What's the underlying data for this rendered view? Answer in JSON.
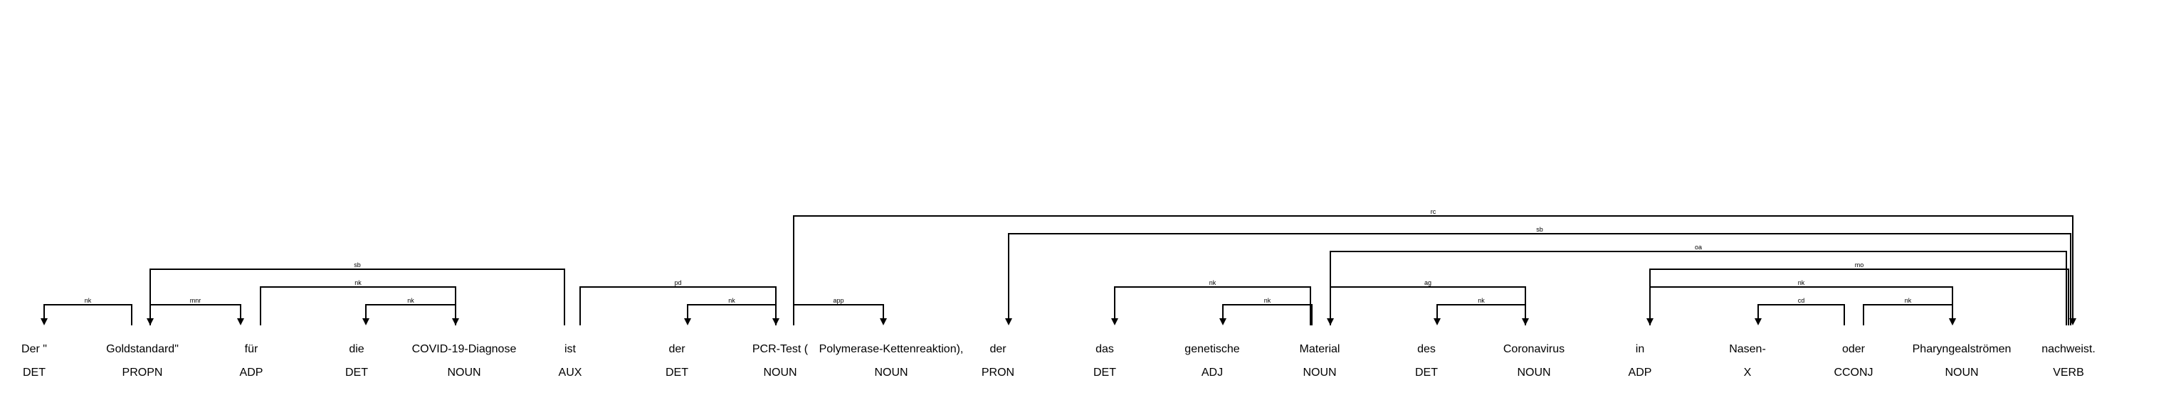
{
  "tokens": [
    {
      "text": "Der \"",
      "tag": "DET"
    },
    {
      "text": "Goldstandard\"",
      "tag": "PROPN"
    },
    {
      "text": "für",
      "tag": "ADP"
    },
    {
      "text": "die",
      "tag": "DET"
    },
    {
      "text": "COVID-19-Diagnose",
      "tag": "NOUN"
    },
    {
      "text": "ist",
      "tag": "AUX"
    },
    {
      "text": "der",
      "tag": "DET"
    },
    {
      "text": "PCR-Test (",
      "tag": "NOUN"
    },
    {
      "text": "Polymerase-Kettenreaktion),",
      "tag": "NOUN"
    },
    {
      "text": "der",
      "tag": "PRON"
    },
    {
      "text": "das",
      "tag": "DET"
    },
    {
      "text": "genetische",
      "tag": "ADJ"
    },
    {
      "text": "Material",
      "tag": "NOUN"
    },
    {
      "text": "des",
      "tag": "DET"
    },
    {
      "text": "Coronavirus",
      "tag": "NOUN"
    },
    {
      "text": "in",
      "tag": "ADP"
    },
    {
      "text": "Nasen-",
      "tag": "X"
    },
    {
      "text": "oder",
      "tag": "CCONJ"
    },
    {
      "text": "Pharyngealströmen",
      "tag": "NOUN"
    },
    {
      "text": "nachweist.",
      "tag": "VERB"
    }
  ],
  "arcs": [
    {
      "head": 1,
      "dep": 0,
      "label": "nk"
    },
    {
      "head": 1,
      "dep": 2,
      "label": "mnr"
    },
    {
      "head": 4,
      "dep": 3,
      "label": "nk"
    },
    {
      "head": 2,
      "dep": 4,
      "label": "nk"
    },
    {
      "head": 5,
      "dep": 1,
      "label": "sb"
    },
    {
      "head": 7,
      "dep": 6,
      "label": "nk"
    },
    {
      "head": 5,
      "dep": 7,
      "label": "pd"
    },
    {
      "head": 7,
      "dep": 8,
      "label": "app"
    },
    {
      "head": 12,
      "dep": 10,
      "label": "nk"
    },
    {
      "head": 12,
      "dep": 11,
      "label": "nk"
    },
    {
      "head": 14,
      "dep": 13,
      "label": "nk"
    },
    {
      "head": 12,
      "dep": 14,
      "label": "ag"
    },
    {
      "head": 16,
      "dep": 17,
      "label": "cd"
    },
    {
      "head": 18,
      "dep": 17,
      "label": "nk"
    },
    {
      "head": 15,
      "dep": 18,
      "label": "nk"
    },
    {
      "head": 19,
      "dep": 15,
      "label": "mo"
    },
    {
      "head": 19,
      "dep": 12,
      "label": "oa"
    },
    {
      "head": 19,
      "dep": 9,
      "label": "sb"
    },
    {
      "head": 7,
      "dep": 19,
      "label": "rc"
    }
  ]
}
